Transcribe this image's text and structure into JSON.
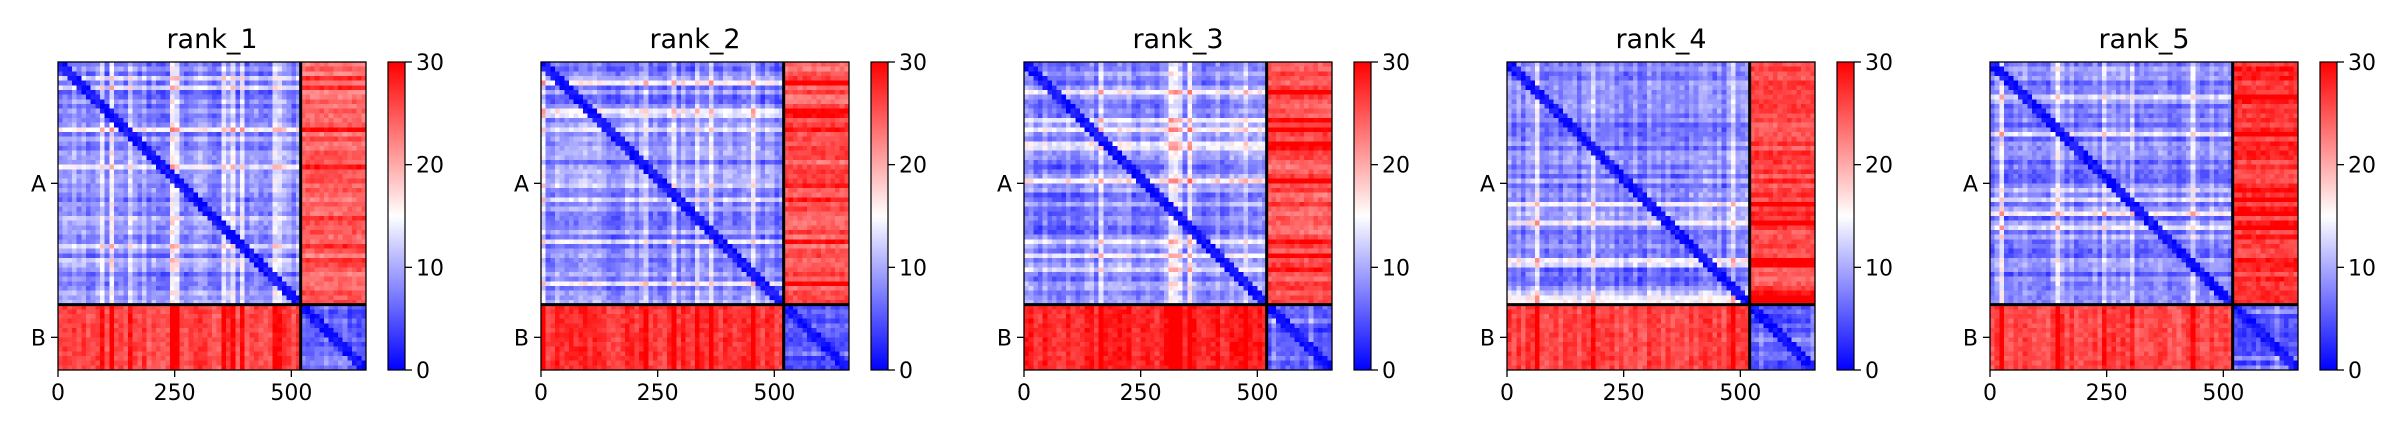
{
  "chart_data": [
    {
      "type": "heatmap",
      "title": "rank_1",
      "xlim": [
        0,
        660
      ],
      "x_ticks": [
        0,
        250,
        500
      ],
      "y_tick_labels": [
        "A",
        "B"
      ],
      "chain_boundary": 520,
      "colorbar": {
        "range": [
          0,
          30
        ],
        "ticks": [
          0,
          10,
          20,
          30
        ],
        "colormap": "bwr"
      },
      "mean_pae": {
        "A-A": 8,
        "A-B": 24,
        "B-A": 26,
        "B-B": 5
      }
    },
    {
      "type": "heatmap",
      "title": "rank_2",
      "xlim": [
        0,
        660
      ],
      "x_ticks": [
        0,
        250,
        500
      ],
      "y_tick_labels": [
        "A",
        "B"
      ],
      "chain_boundary": 520,
      "colorbar": {
        "range": [
          0,
          30
        ],
        "ticks": [
          0,
          10,
          20,
          30
        ],
        "colormap": "bwr"
      },
      "mean_pae": {
        "A-A": 8,
        "A-B": 25,
        "B-A": 27,
        "B-B": 5
      }
    },
    {
      "type": "heatmap",
      "title": "rank_3",
      "xlim": [
        0,
        660
      ],
      "x_ticks": [
        0,
        250,
        500
      ],
      "y_tick_labels": [
        "A",
        "B"
      ],
      "chain_boundary": 520,
      "colorbar": {
        "range": [
          0,
          30
        ],
        "ticks": [
          0,
          10,
          20,
          30
        ],
        "colormap": "bwr"
      },
      "mean_pae": {
        "A-A": 8,
        "A-B": 25,
        "B-A": 28,
        "B-B": 5
      }
    },
    {
      "type": "heatmap",
      "title": "rank_4",
      "xlim": [
        0,
        660
      ],
      "x_ticks": [
        0,
        250,
        500
      ],
      "y_tick_labels": [
        "A",
        "B"
      ],
      "chain_boundary": 520,
      "colorbar": {
        "range": [
          0,
          30
        ],
        "ticks": [
          0,
          10,
          20,
          30
        ],
        "colormap": "bwr"
      },
      "mean_pae": {
        "A-A": 8,
        "A-B": 26,
        "B-A": 26,
        "B-B": 5
      }
    },
    {
      "type": "heatmap",
      "title": "rank_5",
      "xlim": [
        0,
        660
      ],
      "x_ticks": [
        0,
        250,
        500
      ],
      "y_tick_labels": [
        "A",
        "B"
      ],
      "chain_boundary": 520,
      "colorbar": {
        "range": [
          0,
          30
        ],
        "ticks": [
          0,
          10,
          20,
          30
        ],
        "colormap": "bwr"
      },
      "mean_pae": {
        "A-A": 8,
        "A-B": 27,
        "B-A": 26,
        "B-B": 5
      }
    }
  ]
}
